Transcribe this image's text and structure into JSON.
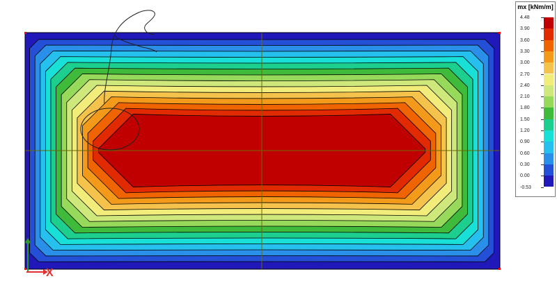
{
  "legend": {
    "title": "mx [kNm/m]",
    "labels": [
      "4.48",
      "3.90",
      "3.60",
      "3.30",
      "3.00",
      "2.70",
      "2.40",
      "2.10",
      "1.80",
      "1.50",
      "1.20",
      "0.90",
      "0.60",
      "0.30",
      "0.00",
      "-0.53"
    ],
    "colors": [
      "#c00000",
      "#e22a00",
      "#f06400",
      "#f39a1b",
      "#f5c24c",
      "#f2ec7a",
      "#cfe87c",
      "#96d95b",
      "#3fba3a",
      "#1ccf8e",
      "#18e0d6",
      "#26c0ee",
      "#2a8fe8",
      "#2450d8",
      "#2018b8"
    ]
  },
  "axes": {
    "x_label": "X",
    "y_label": "Y"
  },
  "colors": {
    "grid_line": "#6b6b00",
    "contour_line": "#000000",
    "corner_marker": "#ff0000",
    "annotation_ink": "#222222"
  }
}
